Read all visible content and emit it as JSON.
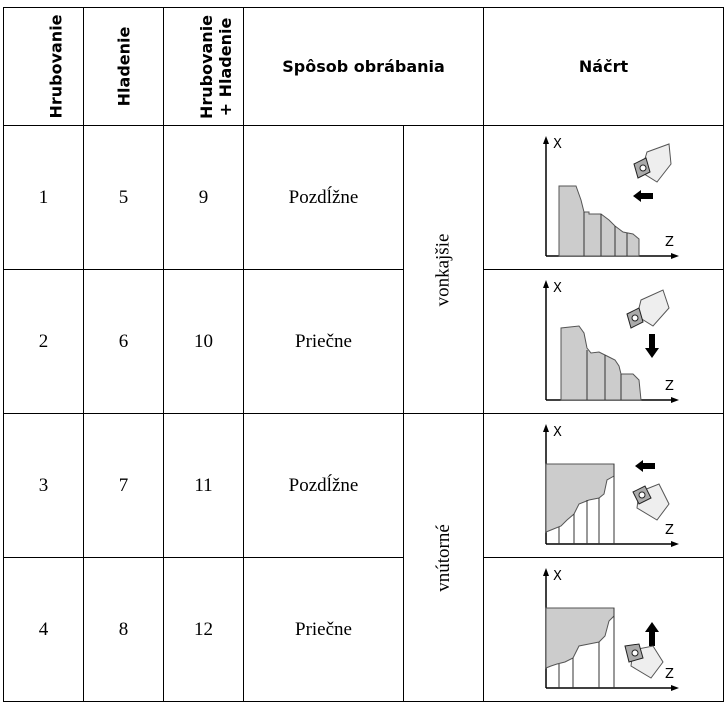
{
  "header": {
    "hrubovanie": "Hrubovanie",
    "hladenie": "Hladenie",
    "combo_line1": "Hrubovanie",
    "combo_line2": "+ Hladenie",
    "method": "Spôsob obrábania",
    "sketch": "Náčrt"
  },
  "rows": [
    {
      "a": "1",
      "b": "5",
      "c": "9",
      "method": "Pozdĺžne"
    },
    {
      "a": "2",
      "b": "6",
      "c": "10",
      "method": "Priečne"
    },
    {
      "a": "3",
      "b": "7",
      "c": "11",
      "method": "Pozdĺžne"
    },
    {
      "a": "4",
      "b": "8",
      "c": "12",
      "method": "Priečne"
    }
  ],
  "groups": {
    "outer": "vonkajšie",
    "inner": "vnútorné"
  },
  "axes": {
    "x": "X",
    "z": "Z"
  }
}
